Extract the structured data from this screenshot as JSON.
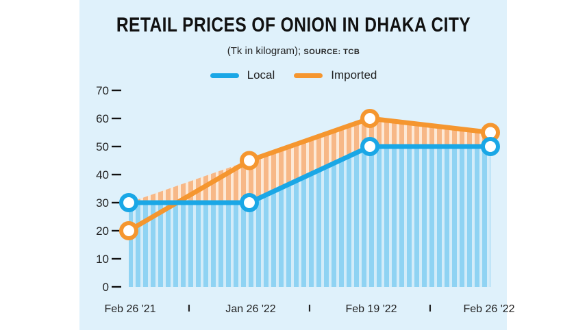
{
  "chart_data": {
    "type": "area",
    "title": "RETAIL PRICES OF ONION IN DHAKA CITY",
    "subtitle": "(Tk in kilogram);",
    "source": "SOURCE: TCB",
    "categories": [
      "Feb 26 '21",
      "Jan 26 '22",
      "Feb 19 '22",
      "Feb 26 '22"
    ],
    "series": [
      {
        "name": "Local",
        "color": "#1aa7e6",
        "values": [
          30,
          30,
          50,
          50
        ]
      },
      {
        "name": "Imported",
        "color": "#f5962f",
        "values": [
          20,
          45,
          60,
          55
        ]
      }
    ],
    "ylim": [
      0,
      70
    ],
    "yticks": [
      0,
      10,
      20,
      30,
      40,
      50,
      60,
      70
    ],
    "x_separator": "I",
    "xlabel": "",
    "ylabel": ""
  }
}
